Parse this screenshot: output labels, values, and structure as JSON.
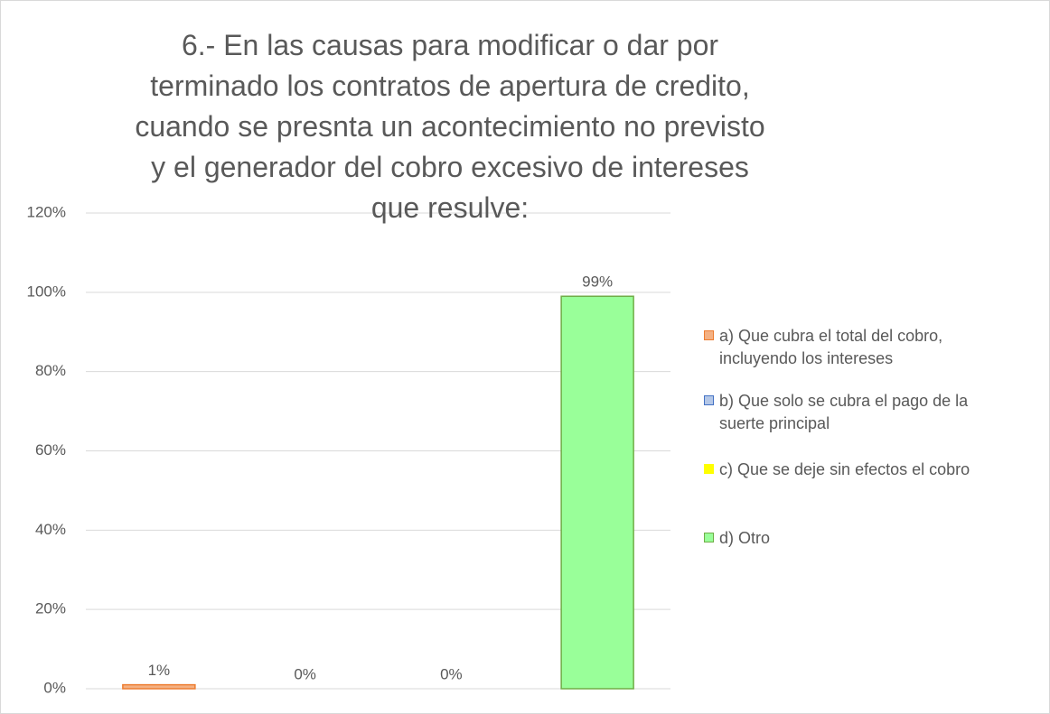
{
  "chart_data": {
    "type": "bar",
    "title": "6.- En las causas para modificar o dar por terminado los contratos de apertura de credito, cuando se presnta un acontecimiento no previsto y el generador del cobro excesivo de intereses que resulve:",
    "series": [
      {
        "name": "a) Que cubra el total del cobro, incluyendo los intereses",
        "color": "#f4b183",
        "border": "#ed7d31",
        "values": [
          1
        ],
        "value_labels": [
          "1%"
        ]
      },
      {
        "name": "b) Que solo se cubra el pago de la suerte principal",
        "color": "#b4c7e7",
        "border": "#4472c4",
        "values": [
          0
        ],
        "value_labels": [
          "0%"
        ]
      },
      {
        "name": "c) Que se deje sin efectos el cobro",
        "color": "#ffff00",
        "border": "#ffff00",
        "values": [
          0
        ],
        "value_labels": [
          "0%"
        ]
      },
      {
        "name": "d) Otro",
        "color": "#99ff99",
        "border": "#70ad47",
        "values": [
          99
        ],
        "value_labels": [
          "99%"
        ]
      }
    ],
    "ylim": [
      0,
      120
    ],
    "yticks": [
      {
        "value": 0,
        "label": "0%"
      },
      {
        "value": 20,
        "label": "20%"
      },
      {
        "value": 40,
        "label": "40%"
      },
      {
        "value": 60,
        "label": "60%"
      },
      {
        "value": 80,
        "label": "80%"
      },
      {
        "value": 100,
        "label": "100%"
      },
      {
        "value": 120,
        "label": "120%"
      }
    ],
    "grid": true,
    "legend": "right"
  }
}
